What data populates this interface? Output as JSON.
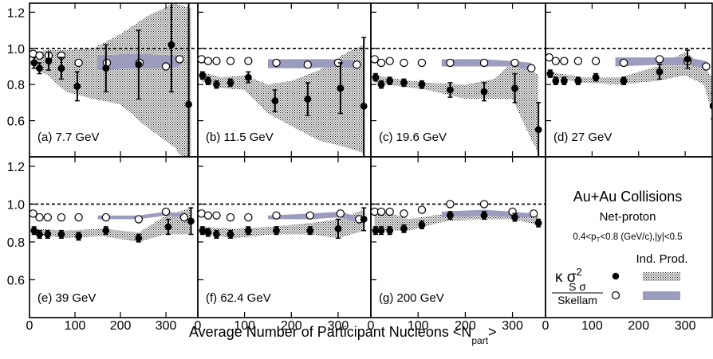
{
  "chart_data": {
    "type": "scatter",
    "xlabel": "Average Number of Participant Nucleons <N",
    "xlabel_sub": "part",
    "xlabel_end": ">",
    "xlim": [
      0,
      370
    ],
    "ylim": [
      0.4,
      1.25
    ],
    "x_ticks": [
      "0",
      "100",
      "200",
      "300"
    ],
    "y_ticks_top": [
      "0.6",
      "0.8",
      "1.0",
      "1.2"
    ],
    "y_ticks_bottom": [
      "0.6",
      "0.8",
      "1.0",
      "1.2"
    ],
    "reference_line": 1.0,
    "panels": [
      {
        "label": "(a) 7.7 GeV",
        "ks2": [
          [
            10,
            0.92,
            0.03
          ],
          [
            22,
            0.89,
            0.03
          ],
          [
            42,
            0.93,
            0.05
          ],
          [
            70,
            0.89,
            0.06
          ],
          [
            105,
            0.79,
            0.08
          ],
          [
            168,
            0.89,
            0.13
          ],
          [
            240,
            0.91,
            0.19
          ],
          [
            312,
            1.02,
            0.26
          ],
          [
            350,
            0.69,
            0.65
          ]
        ],
        "ss": [
          [
            8,
            0.97
          ],
          [
            22,
            0.96
          ],
          [
            42,
            0.96
          ],
          [
            70,
            0.96
          ],
          [
            108,
            0.92
          ],
          [
            170,
            0.92
          ],
          [
            242,
            0.92
          ],
          [
            300,
            0.9
          ],
          [
            330,
            0.94
          ]
        ],
        "band_ind": [
          [
            8,
            0.98,
            0.9
          ],
          [
            40,
            0.99,
            0.85
          ],
          [
            80,
            0.99,
            0.76
          ],
          [
            140,
            1.0,
            0.72
          ],
          [
            200,
            1.08,
            0.69
          ],
          [
            260,
            1.18,
            0.56
          ],
          [
            320,
            1.25,
            0.45
          ],
          [
            355,
            1.22,
            0.32
          ]
        ],
        "band_skellam": [
          [
            150,
            0.96,
            0.88
          ],
          [
            240,
            0.97,
            0.89
          ],
          [
            300,
            0.96,
            0.89
          ],
          [
            330,
            0.96,
            0.9
          ]
        ]
      },
      {
        "label": "(b) 11.5 GeV",
        "ks2": [
          [
            10,
            0.85,
            0.02
          ],
          [
            22,
            0.82,
            0.02
          ],
          [
            40,
            0.8,
            0.02
          ],
          [
            70,
            0.81,
            0.02
          ],
          [
            108,
            0.84,
            0.03
          ],
          [
            165,
            0.71,
            0.06
          ],
          [
            235,
            0.72,
            0.09
          ],
          [
            305,
            0.78,
            0.14
          ],
          [
            355,
            0.68,
            0.38
          ]
        ],
        "ss": [
          [
            8,
            0.94
          ],
          [
            22,
            0.93
          ],
          [
            40,
            0.93
          ],
          [
            70,
            0.93
          ],
          [
            108,
            0.93
          ],
          [
            168,
            0.92
          ],
          [
            235,
            0.91
          ],
          [
            300,
            0.92
          ],
          [
            340,
            0.91
          ]
        ],
        "band_ind": [
          [
            8,
            0.87,
            0.82
          ],
          [
            50,
            0.84,
            0.78
          ],
          [
            100,
            0.85,
            0.77
          ],
          [
            150,
            0.8,
            0.64
          ],
          [
            200,
            0.82,
            0.57
          ],
          [
            260,
            0.88,
            0.49
          ],
          [
            320,
            0.98,
            0.45
          ],
          [
            355,
            1.02,
            0.42
          ]
        ],
        "band_skellam": [
          [
            150,
            0.94,
            0.89
          ],
          [
            240,
            0.94,
            0.89
          ],
          [
            300,
            0.94,
            0.9
          ],
          [
            340,
            0.93,
            0.89
          ]
        ]
      },
      {
        "label": "(c) 19.6 GeV",
        "ks2": [
          [
            10,
            0.84,
            0.02
          ],
          [
            22,
            0.8,
            0.02
          ],
          [
            40,
            0.82,
            0.02
          ],
          [
            70,
            0.81,
            0.02
          ],
          [
            108,
            0.8,
            0.02
          ],
          [
            168,
            0.77,
            0.04
          ],
          [
            240,
            0.76,
            0.05
          ],
          [
            305,
            0.78,
            0.08
          ],
          [
            355,
            0.55,
            0.15
          ]
        ],
        "ss": [
          [
            8,
            0.94
          ],
          [
            22,
            0.92
          ],
          [
            40,
            0.93
          ],
          [
            70,
            0.92
          ],
          [
            108,
            0.92
          ],
          [
            168,
            0.92
          ],
          [
            240,
            0.92
          ],
          [
            305,
            0.92
          ],
          [
            340,
            0.89
          ]
        ],
        "band_ind": [
          [
            8,
            0.85,
            0.81
          ],
          [
            60,
            0.83,
            0.79
          ],
          [
            120,
            0.81,
            0.77
          ],
          [
            200,
            0.8,
            0.72
          ],
          [
            260,
            0.83,
            0.72
          ],
          [
            300,
            0.92,
            0.72
          ],
          [
            330,
            0.9,
            0.55
          ],
          [
            355,
            0.85,
            0.42
          ]
        ],
        "band_skellam": [
          [
            150,
            0.94,
            0.9
          ],
          [
            240,
            0.94,
            0.9
          ],
          [
            300,
            0.93,
            0.9
          ],
          [
            340,
            0.92,
            0.88
          ]
        ]
      },
      {
        "label": "(d) 27 GeV",
        "ks2": [
          [
            10,
            0.86,
            0.02
          ],
          [
            22,
            0.82,
            0.02
          ],
          [
            40,
            0.82,
            0.02
          ],
          [
            70,
            0.82,
            0.02
          ],
          [
            108,
            0.84,
            0.02
          ],
          [
            168,
            0.82,
            0.02
          ],
          [
            245,
            0.87,
            0.04
          ],
          [
            305,
            0.94,
            0.05
          ],
          [
            360,
            0.68,
            0.07
          ]
        ],
        "ss": [
          [
            8,
            0.95
          ],
          [
            22,
            0.93
          ],
          [
            40,
            0.93
          ],
          [
            70,
            0.93
          ],
          [
            108,
            0.93
          ],
          [
            168,
            0.92
          ],
          [
            245,
            0.94
          ],
          [
            305,
            0.93
          ],
          [
            345,
            0.9
          ]
        ],
        "band_ind": [
          [
            8,
            0.87,
            0.84
          ],
          [
            80,
            0.84,
            0.81
          ],
          [
            160,
            0.84,
            0.8
          ],
          [
            240,
            0.9,
            0.82
          ],
          [
            300,
            0.98,
            0.85
          ],
          [
            340,
            0.9,
            0.8
          ],
          [
            365,
            0.82,
            0.58
          ]
        ],
        "band_skellam": [
          [
            150,
            0.95,
            0.9
          ],
          [
            245,
            0.95,
            0.91
          ],
          [
            305,
            0.95,
            0.91
          ],
          [
            345,
            0.93,
            0.89
          ]
        ]
      },
      {
        "label": "(e) 39 GeV",
        "ks2": [
          [
            10,
            0.86,
            0.02
          ],
          [
            22,
            0.84,
            0.02
          ],
          [
            40,
            0.84,
            0.02
          ],
          [
            70,
            0.84,
            0.02
          ],
          [
            108,
            0.83,
            0.02
          ],
          [
            168,
            0.86,
            0.02
          ],
          [
            240,
            0.82,
            0.02
          ],
          [
            305,
            0.88,
            0.04
          ],
          [
            355,
            0.91,
            0.07
          ]
        ],
        "ss": [
          [
            8,
            0.95
          ],
          [
            22,
            0.93
          ],
          [
            40,
            0.93
          ],
          [
            70,
            0.93
          ],
          [
            108,
            0.93
          ],
          [
            168,
            0.93
          ],
          [
            240,
            0.92
          ],
          [
            300,
            0.96
          ],
          [
            340,
            0.93
          ]
        ],
        "band_ind": [
          [
            8,
            0.87,
            0.84
          ],
          [
            80,
            0.86,
            0.82
          ],
          [
            160,
            0.87,
            0.83
          ],
          [
            240,
            0.85,
            0.8
          ],
          [
            300,
            0.94,
            0.84
          ],
          [
            355,
            0.98,
            0.84
          ]
        ],
        "band_skellam": [
          [
            150,
            0.94,
            0.92
          ],
          [
            240,
            0.94,
            0.92
          ],
          [
            300,
            0.96,
            0.94
          ],
          [
            340,
            0.95,
            0.93
          ]
        ]
      },
      {
        "label": "(f) 62.4 GeV",
        "ks2": [
          [
            10,
            0.86,
            0.02
          ],
          [
            22,
            0.85,
            0.02
          ],
          [
            40,
            0.84,
            0.02
          ],
          [
            70,
            0.84,
            0.02
          ],
          [
            108,
            0.86,
            0.02
          ],
          [
            168,
            0.86,
            0.02
          ],
          [
            240,
            0.86,
            0.02
          ],
          [
            300,
            0.87,
            0.05
          ],
          [
            355,
            0.92,
            0.06
          ]
        ],
        "ss": [
          [
            8,
            0.95
          ],
          [
            22,
            0.94
          ],
          [
            40,
            0.94
          ],
          [
            70,
            0.93
          ],
          [
            108,
            0.93
          ],
          [
            168,
            0.94
          ],
          [
            240,
            0.94
          ],
          [
            305,
            0.95
          ],
          [
            345,
            0.92
          ]
        ],
        "band_ind": [
          [
            8,
            0.88,
            0.84
          ],
          [
            80,
            0.87,
            0.82
          ],
          [
            160,
            0.88,
            0.84
          ],
          [
            240,
            0.9,
            0.84
          ],
          [
            300,
            0.92,
            0.82
          ],
          [
            355,
            0.97,
            0.86
          ]
        ],
        "band_skellam": [
          [
            150,
            0.94,
            0.92
          ],
          [
            240,
            0.95,
            0.92
          ],
          [
            305,
            0.96,
            0.93
          ],
          [
            345,
            0.93,
            0.9
          ]
        ]
      },
      {
        "label": "(g) 200 GeV",
        "ks2": [
          [
            10,
            0.86,
            0.02
          ],
          [
            22,
            0.86,
            0.02
          ],
          [
            40,
            0.86,
            0.02
          ],
          [
            70,
            0.87,
            0.02
          ],
          [
            108,
            0.89,
            0.02
          ],
          [
            168,
            0.94,
            0.02
          ],
          [
            240,
            0.94,
            0.02
          ],
          [
            305,
            0.93,
            0.02
          ],
          [
            355,
            0.9,
            0.02
          ]
        ],
        "ss": [
          [
            8,
            0.96
          ],
          [
            22,
            0.96
          ],
          [
            40,
            0.96
          ],
          [
            70,
            0.95
          ],
          [
            108,
            0.97
          ],
          [
            168,
            1.0
          ],
          [
            240,
            1.0
          ],
          [
            300,
            0.96
          ],
          [
            345,
            0.95
          ]
        ],
        "band_ind": [
          [
            8,
            0.98,
            0.86
          ],
          [
            80,
            0.92,
            0.86
          ],
          [
            160,
            0.95,
            0.91
          ],
          [
            240,
            0.95,
            0.92
          ],
          [
            300,
            0.96,
            0.92
          ],
          [
            355,
            0.94,
            0.89
          ]
        ],
        "band_skellam": [
          [
            150,
            0.96,
            0.93
          ],
          [
            240,
            0.97,
            0.94
          ],
          [
            300,
            0.96,
            0.93
          ],
          [
            345,
            0.95,
            0.93
          ]
        ]
      }
    ],
    "legend": {
      "title": "Au+Au Collisions",
      "subtitle": "Net-proton",
      "cuts_pre": "0.4<p",
      "cuts_sub": "T",
      "cuts_post": "<0.8 (GeV/c),|y|<0.5",
      "ind_prod": "Ind. Prod.",
      "ks2_label": "κ σ",
      "ks2_sup": "2",
      "ss_num": "S σ",
      "ss_den": "Skellam"
    },
    "colors": {
      "skellam_band": "#9c9cbf",
      "ind_band": "#000000"
    }
  }
}
